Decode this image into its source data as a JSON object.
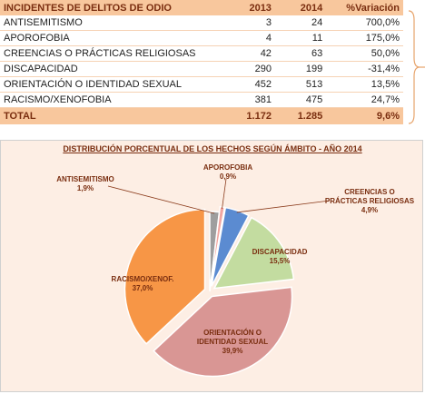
{
  "table": {
    "headers": [
      "INCIDENTES DE DELITOS DE ODIO",
      "2013",
      "2014",
      "%Variación"
    ],
    "rows": [
      [
        "ANTISEMITISMO",
        "3",
        "24",
        "700,0%"
      ],
      [
        "APOROFOBIA",
        "4",
        "11",
        "175,0%"
      ],
      [
        "CREENCIAS O PRÁCTICAS RELIGIOSAS",
        "42",
        "63",
        "50,0%"
      ],
      [
        "DISCAPACIDAD",
        "290",
        "199",
        "-31,4%"
      ],
      [
        "ORIENTACIÓN O IDENTIDAD SEXUAL",
        "452",
        "513",
        "13,5%"
      ],
      [
        "RACISMO/XENOFOBIA",
        "381",
        "475",
        "24,7%"
      ]
    ],
    "total": [
      "TOTAL",
      "1.172",
      "1.285",
      "9,6%"
    ]
  },
  "chart_data": {
    "type": "pie",
    "title": "DISTRIBUCIÓN PORCENTUAL DE LOS HECHOS SEGÚN ÁMBITO - AÑO 2014",
    "slices": [
      {
        "label": "ANTISEMITISMO",
        "value": 1.9,
        "value_label": "1,9%",
        "color": "#9e9e9e"
      },
      {
        "label": "APOROFOBIA",
        "value": 0.9,
        "value_label": "0,9%",
        "color": "#f2a6a0"
      },
      {
        "label": "CREENCIAS O PRÁCTICAS RELIGIOSAS",
        "value": 4.9,
        "value_label": "4,9%",
        "color": "#5b8bd1"
      },
      {
        "label": "DISCAPACIDAD",
        "value": 15.5,
        "value_label": "15,5%",
        "color": "#c3dca0"
      },
      {
        "label": "ORIENTACIÓN O IDENTIDAD SEXUAL",
        "value": 39.9,
        "value_label": "39,9%",
        "color": "#d99694"
      },
      {
        "label": "RACISMO/XENOF.",
        "value": 37.0,
        "value_label": "37,0%",
        "color": "#f79646"
      }
    ],
    "start": "12 o'clock",
    "direction": "clockwise",
    "label_lines": {
      "antisemitismo": [
        "ANTISEMITISMO",
        "1,9%"
      ],
      "aporofobia": [
        "APOROFOBIA",
        "0,9%"
      ],
      "creencias": [
        "CREENCIAS O",
        "PRÁCTICAS RELIGIOSAS",
        "4,9%"
      ],
      "discapacidad": [
        "DISCAPACIDAD",
        "15,5%"
      ],
      "orientacion": [
        "ORIENTACIÓN O",
        "IDENTIDAD SEXUAL",
        "39,9%"
      ],
      "racismo": [
        "RACISMO/XENOF.",
        "37,0%"
      ]
    }
  }
}
